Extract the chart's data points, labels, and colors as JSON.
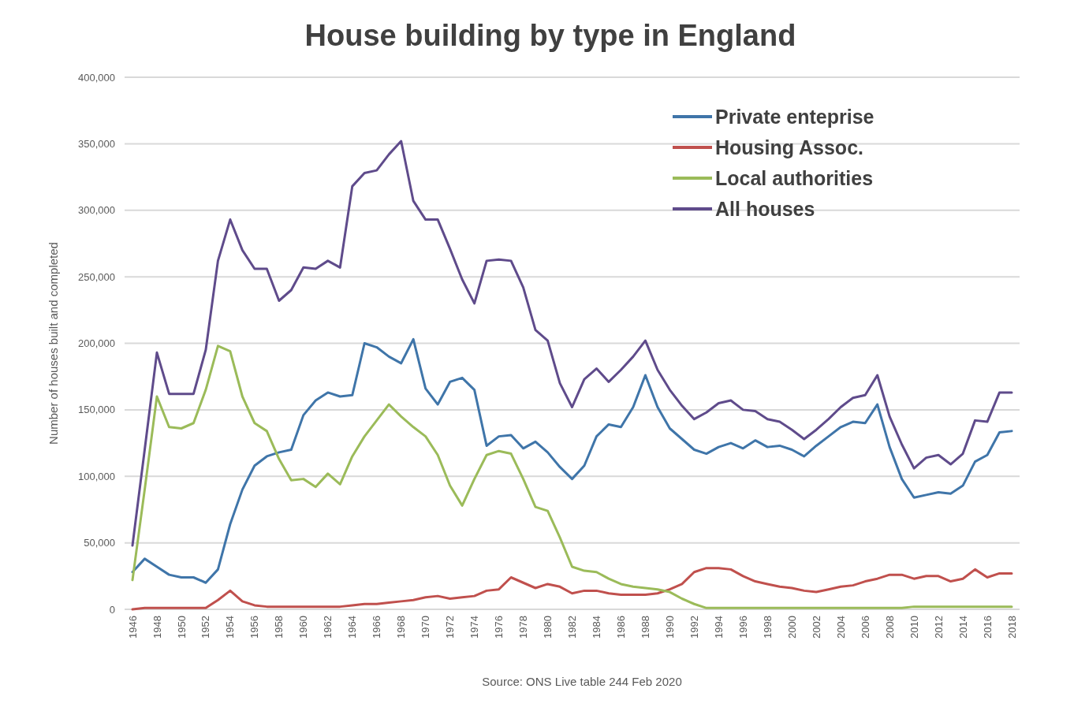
{
  "chart_data": {
    "type": "line",
    "title": "House building by type in England",
    "ylabel": "Number of houses built and completed",
    "annotations": [
      "Source: ONS Live table 244 Feb 2020"
    ],
    "categories": [
      "1946",
      null,
      "1948",
      null,
      "1950",
      null,
      "1952",
      null,
      "1954",
      null,
      "1956",
      null,
      "1958",
      null,
      "1960",
      null,
      "1962",
      null,
      "1964",
      null,
      "1966",
      null,
      "1968",
      null,
      "1970",
      null,
      "1972",
      null,
      "1974",
      null,
      "1976",
      null,
      "1978",
      null,
      "1980",
      null,
      "1982",
      null,
      "1984",
      null,
      "1986",
      null,
      "1988",
      null,
      "1990",
      null,
      "1992",
      null,
      "1994",
      null,
      "1996",
      null,
      "1998",
      null,
      "2000",
      null,
      "2002",
      null,
      "2004",
      null,
      "2006",
      null,
      "2008",
      null,
      "2010",
      null,
      "2012",
      null,
      "2014",
      null,
      "2016",
      null,
      "2018"
    ],
    "series": [
      {
        "name": "Private enteprise",
        "color": "#3f75a9",
        "values": [
          28000,
          38000,
          32000,
          26000,
          24000,
          24000,
          20000,
          30000,
          64000,
          90000,
          108000,
          115000,
          118000,
          120000,
          146000,
          157000,
          163000,
          160000,
          161000,
          200000,
          197000,
          190000,
          185000,
          203000,
          166000,
          154000,
          171000,
          174000,
          165000,
          123000,
          130000,
          131000,
          121000,
          126000,
          118000,
          107000,
          98000,
          108000,
          130000,
          139000,
          137000,
          152000,
          176000,
          152000,
          136000,
          128000,
          120000,
          117000,
          122000,
          125000,
          121000,
          127000,
          122000,
          123000,
          120000,
          115000,
          123000,
          130000,
          137000,
          141000,
          140000,
          154000,
          122000,
          98000,
          84000,
          86000,
          88000,
          87000,
          93000,
          111000,
          116000,
          133000,
          134000
        ]
      },
      {
        "name": "Housing Assoc.",
        "color": "#c0504d",
        "values": [
          0,
          1000,
          1000,
          1000,
          1000,
          1000,
          1000,
          7000,
          14000,
          6000,
          3000,
          2000,
          2000,
          2000,
          2000,
          2000,
          2000,
          2000,
          3000,
          4000,
          4000,
          5000,
          6000,
          7000,
          9000,
          10000,
          8000,
          9000,
          10000,
          14000,
          15000,
          24000,
          20000,
          16000,
          19000,
          17000,
          12000,
          14000,
          14000,
          12000,
          11000,
          11000,
          11000,
          12000,
          15000,
          19000,
          28000,
          31000,
          31000,
          30000,
          25000,
          21000,
          19000,
          17000,
          16000,
          14000,
          13000,
          15000,
          17000,
          18000,
          21000,
          23000,
          26000,
          26000,
          23000,
          25000,
          25000,
          21000,
          23000,
          30000,
          24000,
          27000,
          27000
        ]
      },
      {
        "name": "Local authorities",
        "color": "#9bbb59",
        "values": [
          22000,
          90000,
          160000,
          137000,
          136000,
          140000,
          165000,
          198000,
          194000,
          160000,
          140000,
          134000,
          113000,
          97000,
          98000,
          92000,
          102000,
          94000,
          115000,
          130000,
          142000,
          154000,
          145000,
          137000,
          130000,
          116000,
          93000,
          78000,
          98000,
          116000,
          119000,
          117000,
          98000,
          77000,
          74000,
          54000,
          32000,
          29000,
          28000,
          23000,
          19000,
          17000,
          16000,
          15000,
          13000,
          8000,
          4000,
          1000,
          1000,
          1000,
          1000,
          1000,
          1000,
          1000,
          1000,
          1000,
          1000,
          1000,
          1000,
          1000,
          1000,
          1000,
          1000,
          1000,
          2000,
          2000,
          2000,
          2000,
          2000,
          2000,
          2000,
          2000,
          2000
        ]
      },
      {
        "name": "All houses",
        "color": "#5f4b8b",
        "values": [
          48000,
          120000,
          193000,
          162000,
          162000,
          162000,
          195000,
          262000,
          293000,
          270000,
          256000,
          256000,
          232000,
          240000,
          257000,
          256000,
          262000,
          257000,
          318000,
          328000,
          330000,
          342000,
          352000,
          307000,
          293000,
          293000,
          271000,
          248000,
          230000,
          262000,
          263000,
          262000,
          242000,
          210000,
          202000,
          170000,
          152000,
          173000,
          181000,
          171000,
          180000,
          190000,
          202000,
          180000,
          165000,
          153000,
          143000,
          148000,
          155000,
          157000,
          150000,
          149000,
          143000,
          141000,
          135000,
          128000,
          135000,
          143000,
          152000,
          159000,
          161000,
          176000,
          145000,
          124000,
          106000,
          114000,
          116000,
          109000,
          117000,
          142000,
          141000,
          163000,
          163000
        ]
      }
    ],
    "ylim": [
      0,
      400000
    ],
    "yticks": [
      0,
      {
        "value": 50000,
        "label": "50,000"
      },
      {
        "value": 100000,
        "label": "100,000"
      },
      {
        "value": 150000,
        "label": "150,000"
      },
      {
        "value": 200000,
        "label": "200,000"
      },
      {
        "value": 250000,
        "label": "250,000"
      },
      {
        "value": 300000,
        "label": "300,000"
      },
      {
        "value": 350000,
        "label": "350,000"
      },
      {
        "value": 400000,
        "label": "400,000"
      }
    ],
    "grid": "y",
    "legend": "top right",
    "marker": "none",
    "line_style": "solid"
  }
}
